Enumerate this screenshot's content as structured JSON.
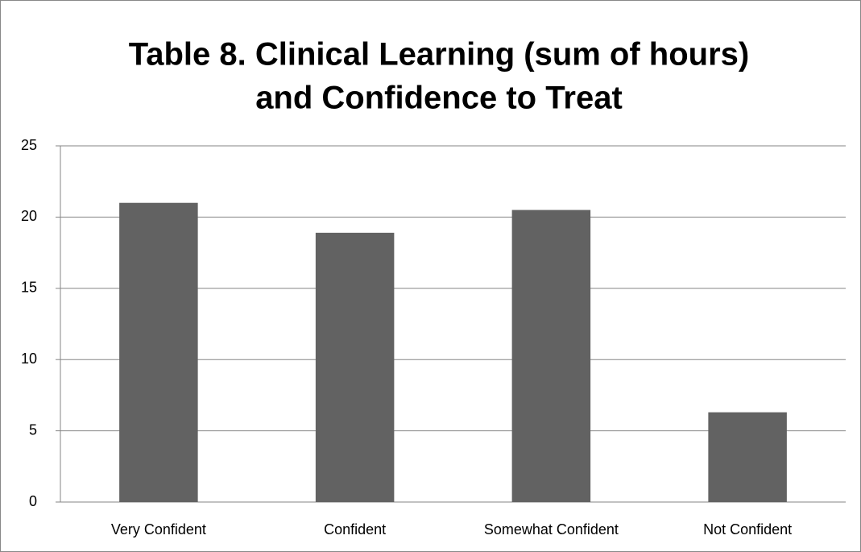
{
  "chart_data": {
    "type": "bar",
    "title": [
      "Table 8. Clinical Learning (sum of hours)",
      "and Confidence to Treat"
    ],
    "categories": [
      "Very Confident",
      "Confident",
      "Somewhat Confident",
      "Not Confident"
    ],
    "values": [
      21,
      18.9,
      20.5,
      6.3
    ],
    "color": "#626262",
    "ylim": [
      0,
      25
    ],
    "yticks": [
      0,
      5,
      10,
      15,
      20,
      25
    ],
    "grid": true
  }
}
